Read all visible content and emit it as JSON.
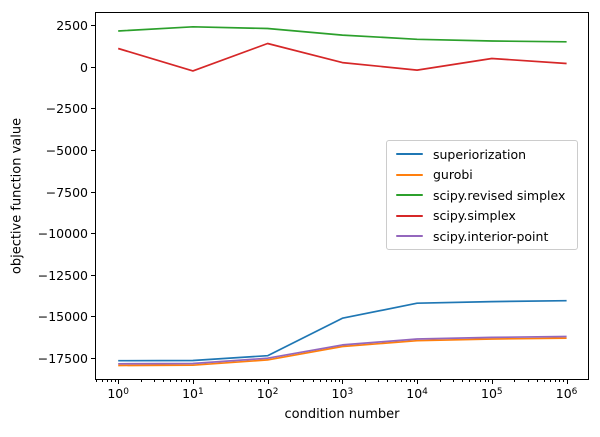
{
  "figure": {
    "background_color": "#ffffff",
    "text_color": "#000000",
    "spine_color": "#000000",
    "legend_border_color": "#cccccc"
  },
  "chart_data": {
    "type": "line",
    "title": "",
    "xlabel": "condition number",
    "ylabel": "objective function value",
    "x_scale": "log",
    "grid": false,
    "legend_position": "center right",
    "x": [
      1,
      10,
      100,
      1000,
      10000,
      100000,
      1000000
    ],
    "series": [
      {
        "name": "superiorization",
        "color": "#1f77b4",
        "values": [
          -17600,
          -17590,
          -17300,
          -15050,
          -14150,
          -14050,
          -14000
        ]
      },
      {
        "name": "gurobi",
        "color": "#ff7f0e",
        "values": [
          -17890,
          -17870,
          -17550,
          -16750,
          -16400,
          -16300,
          -16250
        ]
      },
      {
        "name": "scipy.revised simplex",
        "color": "#2ca02c",
        "values": [
          2200,
          2450,
          2350,
          1950,
          1700,
          1600,
          1550
        ]
      },
      {
        "name": "scipy.simplex",
        "color": "#d62728",
        "values": [
          1150,
          -200,
          1450,
          300,
          -150,
          550,
          250
        ]
      },
      {
        "name": "scipy.interior-point",
        "color": "#9467bd",
        "values": [
          -17790,
          -17770,
          -17450,
          -16650,
          -16300,
          -16200,
          -16150
        ]
      }
    ],
    "x_tick_exponents": [
      0,
      1,
      2,
      3,
      4,
      5,
      6
    ],
    "x_tick_base": "10",
    "y_tick_values": [
      2500,
      0,
      -2500,
      -5000,
      -7500,
      -10000,
      -12500,
      -15000,
      -17500
    ],
    "y_tick_labels": [
      "2500",
      "0",
      "−2500",
      "−5000",
      "−7500",
      "−10000",
      "−12500",
      "−15000",
      "−17500"
    ],
    "xlim_log10": [
      -0.31,
      6.3
    ],
    "ylim": [
      -18760,
      3340
    ]
  }
}
